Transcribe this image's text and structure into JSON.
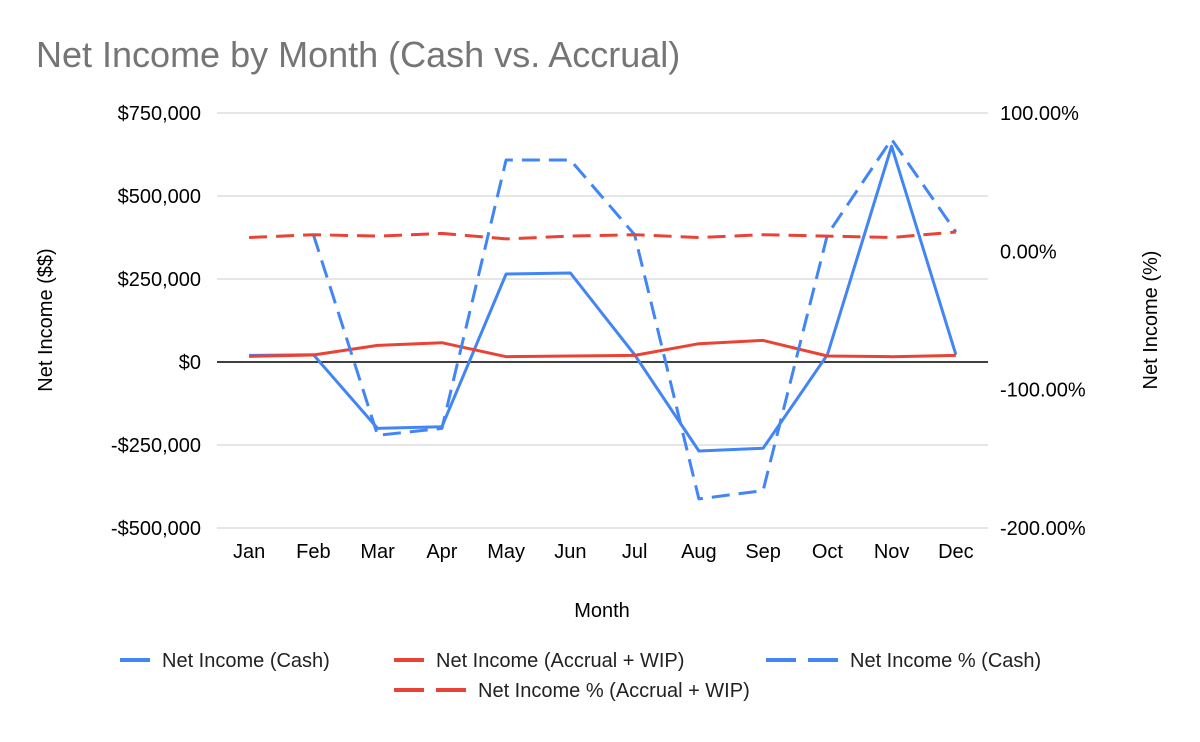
{
  "chart_data": {
    "type": "line",
    "title": "Net Income by Month (Cash vs. Accrual)",
    "xlabel": "Month",
    "ylabel": "Net Income ($$)",
    "ylabel_right": "Net Income (%)",
    "categories": [
      "Jan",
      "Feb",
      "Mar",
      "Apr",
      "May",
      "Jun",
      "Jul",
      "Aug",
      "Sep",
      "Oct",
      "Nov",
      "Dec"
    ],
    "ylim": [
      -500000,
      750000
    ],
    "yticks": [
      750000,
      500000,
      250000,
      0,
      -250000,
      -500000
    ],
    "ytick_labels": [
      "$750,000",
      "$500,000",
      "$250,000",
      "$0",
      "-$250,000",
      "-$500,000"
    ],
    "ylim_right": [
      -200,
      100
    ],
    "yticks_right": [
      100,
      0,
      -100,
      -200
    ],
    "ytick_labels_right": [
      "100.00%",
      "0.00%",
      "-100.00%",
      "-200.00%"
    ],
    "grid": true,
    "legend_position": "bottom",
    "series": [
      {
        "name": "Net Income (Cash)",
        "axis": "left",
        "color": "#4285F4",
        "dash": "solid",
        "values": [
          20000,
          22000,
          -200000,
          -195000,
          265000,
          268000,
          22000,
          -268000,
          -260000,
          22000,
          650000,
          22000
        ]
      },
      {
        "name": "Net Income (Accrual + WIP)",
        "axis": "left",
        "color": "#EA4335",
        "dash": "solid",
        "values": [
          17000,
          21000,
          50000,
          58000,
          16000,
          18000,
          20000,
          55000,
          65000,
          18000,
          16000,
          20000
        ]
      },
      {
        "name": "Net Income % (Cash)",
        "axis": "right",
        "color": "#4285F4",
        "dash": "dashed",
        "values": [
          null,
          12,
          -133,
          -128,
          66,
          66,
          12,
          -179,
          -173,
          12,
          81,
          14
        ]
      },
      {
        "name": "Net Income % (Accrual + WIP)",
        "axis": "right",
        "color": "#EA4335",
        "dash": "dashed",
        "values": [
          10,
          12,
          11,
          13,
          9,
          11,
          12,
          10,
          12,
          11,
          10,
          14
        ]
      }
    ]
  }
}
